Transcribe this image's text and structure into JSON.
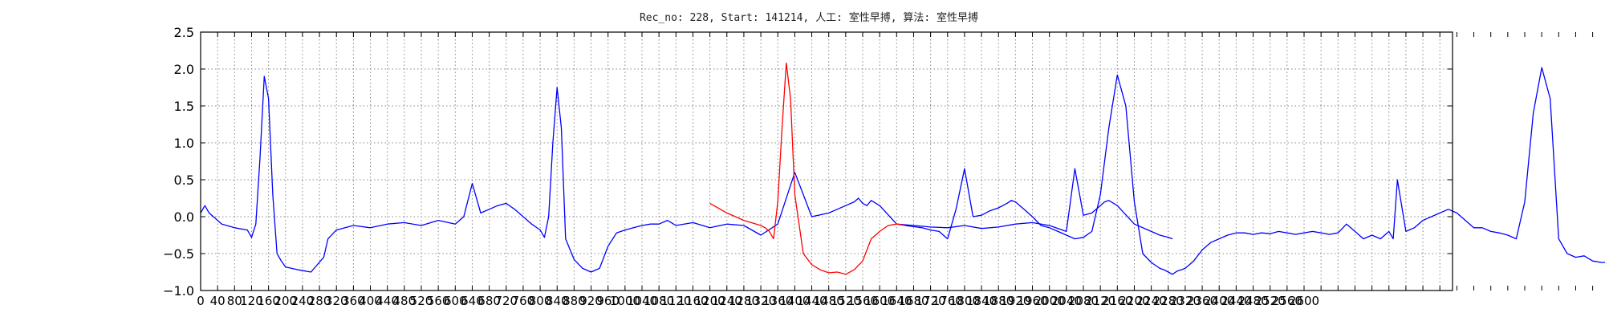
{
  "chart_data": {
    "type": "line",
    "title": "Rec_no: 228, Start: 141214, 人工: 室性早搏, 算法: 室性早搏",
    "xlabel": "",
    "ylabel": "",
    "xlim": [
      0,
      3640
    ],
    "ylim": [
      -1.0,
      2.5
    ],
    "grid": true,
    "yticks": [
      -1.0,
      -0.5,
      0.0,
      0.5,
      1.0,
      1.5,
      2.0,
      2.5
    ],
    "ytick_labels": [
      "−1.0",
      "−0.5",
      "0.0",
      "0.5",
      "1.0",
      "1.5",
      "2.0",
      "2.5"
    ],
    "xticks": [
      0,
      40,
      80,
      120,
      160,
      200,
      240,
      280,
      320,
      360,
      400,
      440,
      480,
      520,
      560,
      600,
      640,
      680,
      720,
      760,
      800,
      840,
      880,
      920,
      960,
      1000,
      1040,
      1080,
      1120,
      1160,
      1200,
      1240,
      1280,
      1320,
      1360,
      1400,
      1440,
      1480,
      1520,
      1560,
      1600,
      1640,
      1680,
      1720,
      1760,
      1800,
      1840,
      1880,
      1920,
      1960,
      2000,
      2040,
      2080,
      2120,
      2160,
      2200,
      2240,
      2280,
      2320,
      2360,
      2400,
      2440,
      2480,
      2520,
      2560,
      2600,
      2640,
      2680,
      2720,
      2760,
      2800,
      2840,
      2880,
      2920,
      2960,
      3000,
      3040,
      3080,
      3120,
      3160,
      3200,
      3240,
      3280,
      3320,
      3360,
      3400,
      3440,
      3480,
      3520,
      3560,
      3600,
      3640
    ],
    "xtick_labels_visible": [
      "0",
      "40",
      "80",
      "120",
      "160",
      "200",
      "240",
      "280",
      "320",
      "360",
      "400",
      "440",
      "480",
      "520",
      "560",
      "600",
      "640",
      "680",
      "720",
      "760",
      "800",
      "840",
      "880",
      "920",
      "960",
      "1000",
      "1040",
      "1080",
      "1120",
      "1160",
      "1200",
      "1240",
      "1280",
      "1320",
      "1360",
      "1400",
      "1440",
      "1480",
      "1520",
      "1560",
      "1600",
      "1640",
      "1680",
      "1720",
      "1760",
      "1800",
      "1840",
      "1880",
      "1920",
      "1960",
      "2000",
      "2040",
      "2080",
      "2120",
      "2160",
      "2200",
      "2240",
      "2280",
      "2320",
      "2360",
      "2400",
      "2440",
      "2480",
      "2520",
      "2560",
      "2600"
    ],
    "series": [
      {
        "color": "#0000ff",
        "x": [
          0,
          10,
          20,
          30,
          50,
          80,
          110,
          120,
          130,
          140,
          150,
          160,
          170,
          180,
          190,
          200,
          230,
          260,
          290,
          300,
          320,
          360,
          400,
          440,
          480,
          520,
          560,
          600,
          620,
          640,
          660,
          680,
          700,
          720,
          740,
          760,
          780,
          790,
          800,
          810,
          820,
          830,
          840,
          850,
          860,
          880,
          900,
          920,
          940,
          960,
          980,
          1000,
          1020,
          1040,
          1060,
          1080,
          1100,
          1120,
          1160,
          1200,
          1240,
          1280,
          1320,
          1360,
          1400,
          1440,
          1480,
          1500,
          1520,
          1540,
          1550,
          1560,
          1570,
          1580,
          1600,
          1640,
          1680,
          1720,
          1760,
          1800,
          1840,
          1880,
          1920,
          1960,
          2000,
          2040,
          2060,
          2080,
          2100,
          2110,
          2120,
          2130,
          2140,
          2160,
          2200,
          2240,
          2260,
          2280,
          2290
        ],
        "y": [
          0.05,
          0.15,
          0.05,
          0.0,
          -0.1,
          -0.15,
          -0.18,
          -0.28,
          -0.1,
          0.8,
          1.9,
          1.6,
          0.3,
          -0.5,
          -0.6,
          -0.68,
          -0.72,
          -0.75,
          -0.55,
          -0.3,
          -0.18,
          -0.12,
          -0.15,
          -0.1,
          -0.08,
          -0.12,
          -0.05,
          -0.1,
          0.0,
          0.45,
          0.05,
          0.1,
          0.15,
          0.18,
          0.1,
          0.0,
          -0.1,
          -0.14,
          -0.18,
          -0.28,
          0.0,
          1.0,
          1.75,
          1.2,
          -0.3,
          -0.58,
          -0.7,
          -0.75,
          -0.7,
          -0.4,
          -0.22,
          -0.18,
          -0.15,
          -0.12,
          -0.1,
          -0.1,
          -0.05,
          -0.12,
          -0.08,
          -0.15,
          -0.1,
          -0.12,
          -0.25,
          -0.1,
          0.6,
          0.0,
          0.05,
          0.1,
          0.15,
          0.2,
          0.25,
          0.18,
          0.15,
          0.22,
          0.15,
          -0.1,
          -0.12,
          -0.14,
          -0.15,
          -0.12,
          -0.16,
          -0.14,
          -0.1,
          -0.08,
          -0.12,
          -0.2,
          0.65,
          0.02,
          0.05,
          0.1,
          0.15,
          0.2,
          0.22,
          0.15,
          -0.1,
          -0.2,
          -0.25,
          -0.28,
          -0.3
        ]
      },
      {
        "color": "#ff0000",
        "x": [
          1200,
          1240,
          1280,
          1320,
          1330,
          1340,
          1350,
          1360,
          1370,
          1380,
          1390,
          1400,
          1420,
          1440,
          1460,
          1480,
          1500,
          1520,
          1540,
          1560,
          1570,
          1580,
          1600,
          1620,
          1640,
          1660
        ],
        "y": [
          0.18,
          0.05,
          -0.05,
          -0.12,
          -0.15,
          -0.2,
          -0.3,
          0.2,
          1.2,
          2.08,
          1.6,
          0.3,
          -0.5,
          -0.65,
          -0.72,
          -0.76,
          -0.75,
          -0.78,
          -0.72,
          -0.6,
          -0.45,
          -0.3,
          -0.2,
          -0.12,
          -0.1,
          -0.12
        ]
      },
      {
        "color": "#0000ff",
        "x": [
          1660,
          1700,
          1720,
          1740,
          1760,
          1780,
          1800,
          1820,
          1840,
          1860,
          1880,
          1900,
          1910,
          1920,
          1940,
          1960,
          1980,
          2000,
          2020,
          2040,
          2060,
          2080,
          2100,
          2120,
          2140,
          2160,
          2180,
          2200,
          2220,
          2240,
          2260,
          2270,
          2280,
          2290,
          2300,
          2320,
          2340,
          2360,
          2380,
          2400,
          2420,
          2440,
          2460,
          2480,
          2500,
          2520,
          2540,
          2560,
          2580,
          2600,
          2620,
          2640,
          2660,
          2680,
          2700,
          2720,
          2740,
          2760,
          2780,
          2790,
          2800,
          2810,
          2820,
          2840,
          2860,
          2880,
          2900,
          2920,
          2940,
          2960,
          2980,
          3000,
          3020,
          3040,
          3060,
          3080,
          3100,
          3120,
          3140,
          3160,
          3180,
          3200,
          3220,
          3240,
          3260,
          3280,
          3300,
          3320,
          3340,
          3360,
          3380,
          3400,
          3420,
          3440,
          3460,
          3480,
          3500,
          3510,
          3520,
          3530,
          3540,
          3560,
          3580,
          3600,
          3620,
          3640
        ],
        "y": [
          -0.12,
          -0.15,
          -0.18,
          -0.2,
          -0.3,
          0.1,
          0.65,
          0.0,
          0.02,
          0.08,
          0.12,
          0.18,
          0.22,
          0.2,
          0.1,
          0.0,
          -0.12,
          -0.15,
          -0.2,
          -0.25,
          -0.3,
          -0.28,
          -0.2,
          0.3,
          1.2,
          1.92,
          1.5,
          0.2,
          -0.5,
          -0.62,
          -0.7,
          -0.72,
          -0.75,
          -0.78,
          -0.74,
          -0.7,
          -0.6,
          -0.45,
          -0.35,
          -0.3,
          -0.25,
          -0.22,
          -0.22,
          -0.24,
          -0.22,
          -0.23,
          -0.2,
          -0.22,
          -0.24,
          -0.22,
          -0.2,
          -0.22,
          -0.24,
          -0.22,
          -0.1,
          -0.2,
          -0.3,
          -0.25,
          -0.3,
          -0.25,
          -0.2,
          -0.3,
          0.5,
          -0.2,
          -0.15,
          -0.05,
          0.0,
          0.05,
          0.1,
          0.05,
          -0.05,
          -0.15,
          -0.15,
          -0.2,
          -0.22,
          -0.25,
          -0.3,
          0.2,
          1.4,
          2.02,
          1.6,
          -0.3,
          -0.5,
          -0.55,
          -0.53,
          -0.6,
          -0.62,
          -0.62,
          -0.64,
          -0.62,
          -0.63,
          -0.64,
          -0.62,
          -0.63,
          -0.62,
          -0.63,
          -0.62,
          -0.63,
          -0.64,
          -0.63,
          -0.62,
          -0.63,
          -0.62,
          -0.64,
          -0.63,
          -0.65
        ]
      }
    ]
  }
}
